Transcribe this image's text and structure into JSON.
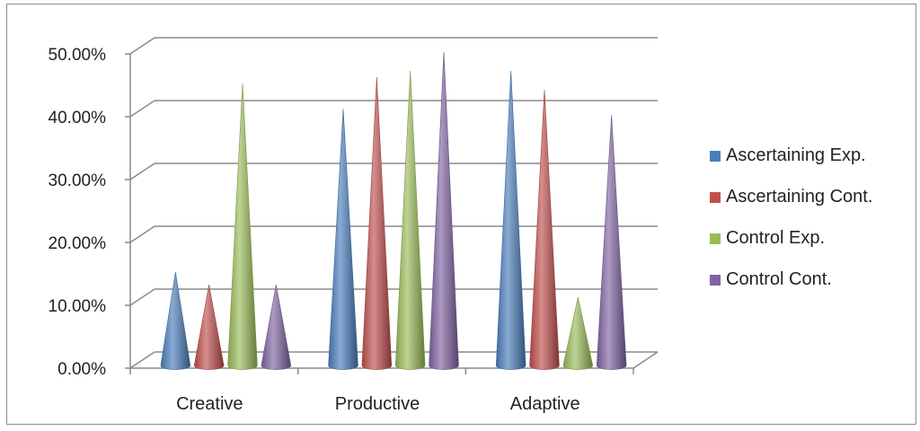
{
  "chart_data": {
    "type": "bar",
    "style": "3d-cone",
    "categories": [
      "Creative",
      "Productive",
      "Adaptive"
    ],
    "series": [
      {
        "name": "Ascertaining Exp.",
        "color": "#4a7ebb",
        "values": [
          13,
          39,
          45
        ]
      },
      {
        "name": "Ascertaining Cont.",
        "color": "#c0504d",
        "values": [
          11,
          44,
          42
        ]
      },
      {
        "name": "Control Exp.",
        "color": "#9bbb59",
        "values": [
          43,
          45,
          9
        ]
      },
      {
        "name": "Control Cont.",
        "color": "#8064a2",
        "values": [
          11,
          48,
          38
        ]
      }
    ],
    "y_ticks": [
      "0.00%",
      "10.00%",
      "20.00%",
      "30.00%",
      "40.00%",
      "50.00%"
    ],
    "ylim": [
      0,
      50
    ],
    "grid": true,
    "legend_position": "right"
  }
}
